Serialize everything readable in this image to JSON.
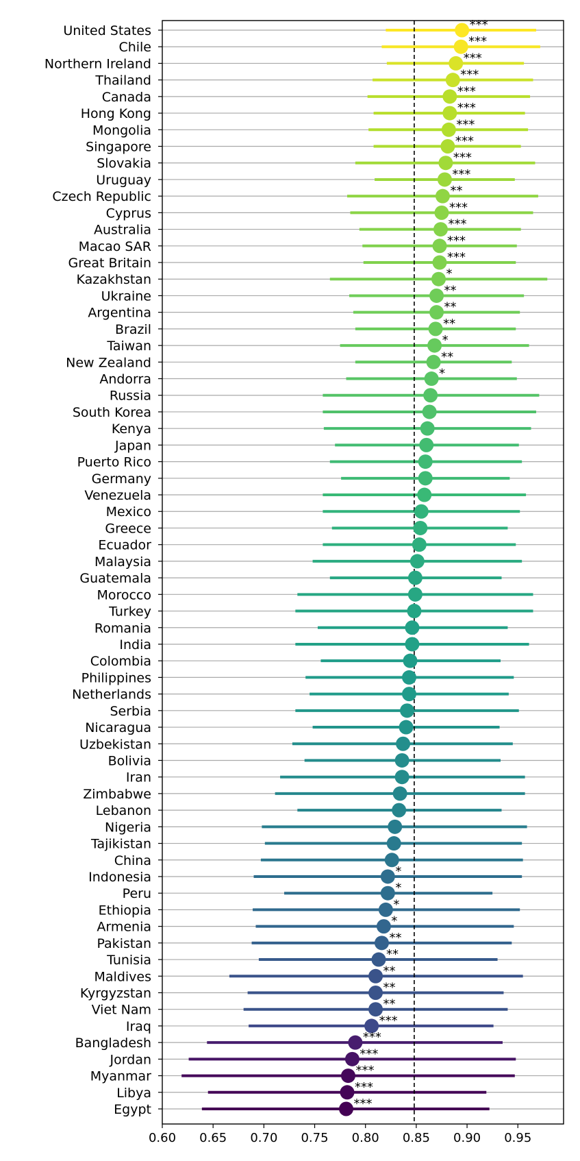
{
  "chart_data": {
    "type": "scatter",
    "subtype": "dot-whisker",
    "title": "",
    "xlabel": "",
    "ylabel": "",
    "xlim": [
      0.6,
      0.995
    ],
    "xticks": [
      0.6,
      0.65,
      0.7,
      0.75,
      0.8,
      0.85,
      0.9,
      0.95
    ],
    "xtick_labels": [
      "0.60",
      "0.65",
      "0.70",
      "0.75",
      "0.80",
      "0.85",
      "0.90",
      "0.95"
    ],
    "reference_line": 0.848,
    "grid": "horizontal lines per country",
    "colormap": "viridis",
    "series": [
      {
        "country": "United States",
        "estimate": 0.895,
        "lower": 0.82,
        "upper": 0.968,
        "sig": "***"
      },
      {
        "country": "Chile",
        "estimate": 0.894,
        "lower": 0.816,
        "upper": 0.972,
        "sig": "***"
      },
      {
        "country": "Northern Ireland",
        "estimate": 0.889,
        "lower": 0.821,
        "upper": 0.956,
        "sig": "***"
      },
      {
        "country": "Thailand",
        "estimate": 0.886,
        "lower": 0.807,
        "upper": 0.965,
        "sig": "***"
      },
      {
        "country": "Canada",
        "estimate": 0.883,
        "lower": 0.802,
        "upper": 0.962,
        "sig": "***"
      },
      {
        "country": "Hong Kong",
        "estimate": 0.883,
        "lower": 0.808,
        "upper": 0.957,
        "sig": "***"
      },
      {
        "country": "Mongolia",
        "estimate": 0.882,
        "lower": 0.803,
        "upper": 0.96,
        "sig": "***"
      },
      {
        "country": "Singapore",
        "estimate": 0.881,
        "lower": 0.808,
        "upper": 0.953,
        "sig": "***"
      },
      {
        "country": "Slovakia",
        "estimate": 0.879,
        "lower": 0.79,
        "upper": 0.967,
        "sig": "***"
      },
      {
        "country": "Uruguay",
        "estimate": 0.878,
        "lower": 0.809,
        "upper": 0.947,
        "sig": "***"
      },
      {
        "country": "Czech Republic",
        "estimate": 0.876,
        "lower": 0.782,
        "upper": 0.97,
        "sig": "**"
      },
      {
        "country": "Cyprus",
        "estimate": 0.875,
        "lower": 0.785,
        "upper": 0.965,
        "sig": "***"
      },
      {
        "country": "Australia",
        "estimate": 0.874,
        "lower": 0.794,
        "upper": 0.953,
        "sig": "***"
      },
      {
        "country": "Macao SAR",
        "estimate": 0.873,
        "lower": 0.797,
        "upper": 0.949,
        "sig": "***"
      },
      {
        "country": "Great Britain",
        "estimate": 0.873,
        "lower": 0.798,
        "upper": 0.948,
        "sig": "***"
      },
      {
        "country": "Kazakhstan",
        "estimate": 0.872,
        "lower": 0.765,
        "upper": 0.979,
        "sig": "*"
      },
      {
        "country": "Ukraine",
        "estimate": 0.87,
        "lower": 0.784,
        "upper": 0.956,
        "sig": "**"
      },
      {
        "country": "Argentina",
        "estimate": 0.87,
        "lower": 0.788,
        "upper": 0.952,
        "sig": "**"
      },
      {
        "country": "Brazil",
        "estimate": 0.869,
        "lower": 0.79,
        "upper": 0.948,
        "sig": "**"
      },
      {
        "country": "Taiwan",
        "estimate": 0.868,
        "lower": 0.775,
        "upper": 0.961,
        "sig": "*"
      },
      {
        "country": "New Zealand",
        "estimate": 0.867,
        "lower": 0.79,
        "upper": 0.944,
        "sig": "**"
      },
      {
        "country": "Andorra",
        "estimate": 0.865,
        "lower": 0.781,
        "upper": 0.949,
        "sig": "*"
      },
      {
        "country": "Russia",
        "estimate": 0.864,
        "lower": 0.758,
        "upper": 0.971,
        "sig": ""
      },
      {
        "country": "South Korea",
        "estimate": 0.863,
        "lower": 0.758,
        "upper": 0.968,
        "sig": ""
      },
      {
        "country": "Kenya",
        "estimate": 0.861,
        "lower": 0.759,
        "upper": 0.963,
        "sig": ""
      },
      {
        "country": "Japan",
        "estimate": 0.86,
        "lower": 0.77,
        "upper": 0.951,
        "sig": ""
      },
      {
        "country": "Puerto Rico",
        "estimate": 0.859,
        "lower": 0.765,
        "upper": 0.954,
        "sig": ""
      },
      {
        "country": "Germany",
        "estimate": 0.859,
        "lower": 0.776,
        "upper": 0.942,
        "sig": ""
      },
      {
        "country": "Venezuela",
        "estimate": 0.858,
        "lower": 0.758,
        "upper": 0.958,
        "sig": ""
      },
      {
        "country": "Mexico",
        "estimate": 0.855,
        "lower": 0.758,
        "upper": 0.952,
        "sig": ""
      },
      {
        "country": "Greece",
        "estimate": 0.854,
        "lower": 0.767,
        "upper": 0.94,
        "sig": ""
      },
      {
        "country": "Ecuador",
        "estimate": 0.853,
        "lower": 0.758,
        "upper": 0.948,
        "sig": ""
      },
      {
        "country": "Malaysia",
        "estimate": 0.851,
        "lower": 0.748,
        "upper": 0.954,
        "sig": ""
      },
      {
        "country": "Guatemala",
        "estimate": 0.849,
        "lower": 0.765,
        "upper": 0.934,
        "sig": ""
      },
      {
        "country": "Morocco",
        "estimate": 0.849,
        "lower": 0.733,
        "upper": 0.965,
        "sig": ""
      },
      {
        "country": "Turkey",
        "estimate": 0.848,
        "lower": 0.731,
        "upper": 0.965,
        "sig": ""
      },
      {
        "country": "Romania",
        "estimate": 0.846,
        "lower": 0.753,
        "upper": 0.94,
        "sig": ""
      },
      {
        "country": "India",
        "estimate": 0.846,
        "lower": 0.731,
        "upper": 0.961,
        "sig": ""
      },
      {
        "country": "Colombia",
        "estimate": 0.844,
        "lower": 0.756,
        "upper": 0.933,
        "sig": ""
      },
      {
        "country": "Philippines",
        "estimate": 0.843,
        "lower": 0.741,
        "upper": 0.946,
        "sig": ""
      },
      {
        "country": "Netherlands",
        "estimate": 0.843,
        "lower": 0.745,
        "upper": 0.941,
        "sig": ""
      },
      {
        "country": "Serbia",
        "estimate": 0.841,
        "lower": 0.731,
        "upper": 0.951,
        "sig": ""
      },
      {
        "country": "Nicaragua",
        "estimate": 0.84,
        "lower": 0.748,
        "upper": 0.932,
        "sig": ""
      },
      {
        "country": "Uzbekistan",
        "estimate": 0.837,
        "lower": 0.728,
        "upper": 0.945,
        "sig": ""
      },
      {
        "country": "Bolivia",
        "estimate": 0.836,
        "lower": 0.74,
        "upper": 0.933,
        "sig": ""
      },
      {
        "country": "Iran",
        "estimate": 0.836,
        "lower": 0.716,
        "upper": 0.957,
        "sig": ""
      },
      {
        "country": "Zimbabwe",
        "estimate": 0.834,
        "lower": 0.711,
        "upper": 0.957,
        "sig": ""
      },
      {
        "country": "Lebanon",
        "estimate": 0.833,
        "lower": 0.733,
        "upper": 0.934,
        "sig": ""
      },
      {
        "country": "Nigeria",
        "estimate": 0.829,
        "lower": 0.698,
        "upper": 0.959,
        "sig": ""
      },
      {
        "country": "Tajikistan",
        "estimate": 0.828,
        "lower": 0.701,
        "upper": 0.954,
        "sig": ""
      },
      {
        "country": "China",
        "estimate": 0.826,
        "lower": 0.697,
        "upper": 0.955,
        "sig": ""
      },
      {
        "country": "Indonesia",
        "estimate": 0.822,
        "lower": 0.69,
        "upper": 0.954,
        "sig": "*"
      },
      {
        "country": "Peru",
        "estimate": 0.822,
        "lower": 0.72,
        "upper": 0.925,
        "sig": "*"
      },
      {
        "country": "Ethiopia",
        "estimate": 0.82,
        "lower": 0.689,
        "upper": 0.952,
        "sig": "*"
      },
      {
        "country": "Armenia",
        "estimate": 0.818,
        "lower": 0.692,
        "upper": 0.946,
        "sig": "*"
      },
      {
        "country": "Pakistan",
        "estimate": 0.816,
        "lower": 0.688,
        "upper": 0.944,
        "sig": "**"
      },
      {
        "country": "Tunisia",
        "estimate": 0.813,
        "lower": 0.695,
        "upper": 0.93,
        "sig": "**"
      },
      {
        "country": "Maldives",
        "estimate": 0.81,
        "lower": 0.666,
        "upper": 0.955,
        "sig": "**"
      },
      {
        "country": "Kyrgyzstan",
        "estimate": 0.81,
        "lower": 0.684,
        "upper": 0.936,
        "sig": "**"
      },
      {
        "country": "Viet Nam",
        "estimate": 0.81,
        "lower": 0.68,
        "upper": 0.94,
        "sig": "**"
      },
      {
        "country": "Iraq",
        "estimate": 0.806,
        "lower": 0.685,
        "upper": 0.926,
        "sig": "***"
      },
      {
        "country": "Bangladesh",
        "estimate": 0.79,
        "lower": 0.644,
        "upper": 0.935,
        "sig": "***"
      },
      {
        "country": "Jordan",
        "estimate": 0.787,
        "lower": 0.626,
        "upper": 0.948,
        "sig": "***"
      },
      {
        "country": "Myanmar",
        "estimate": 0.783,
        "lower": 0.619,
        "upper": 0.947,
        "sig": "***"
      },
      {
        "country": "Libya",
        "estimate": 0.782,
        "lower": 0.645,
        "upper": 0.919,
        "sig": "***"
      },
      {
        "country": "Egypt",
        "estimate": 0.781,
        "lower": 0.639,
        "upper": 0.922,
        "sig": "***"
      }
    ]
  }
}
